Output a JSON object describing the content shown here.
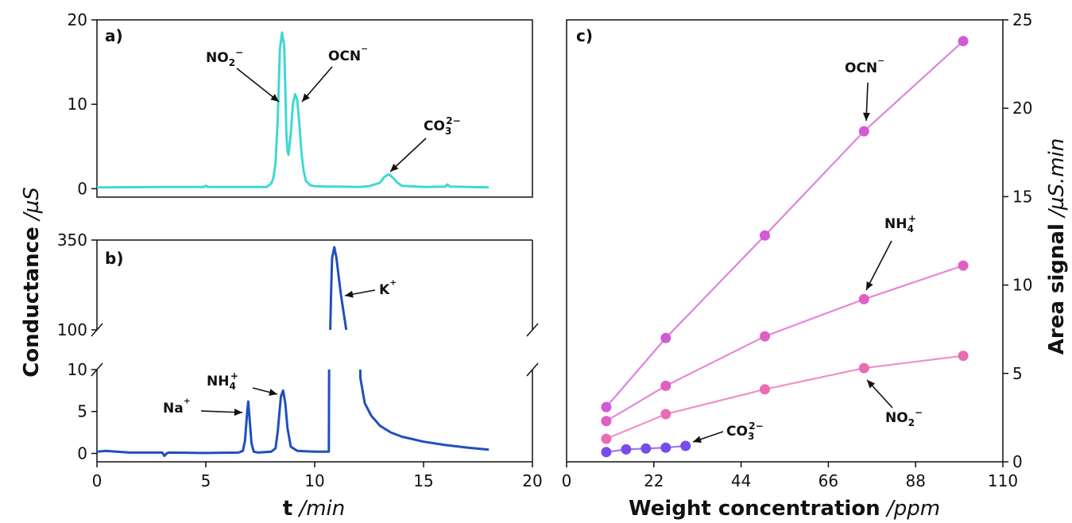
{
  "figure": {
    "left_ylabel": {
      "main": "Conductance",
      "unit": "/µS"
    },
    "bottom_xlabel": {
      "main": "t",
      "unit": "/min"
    },
    "right_xlabel": {
      "main": "Weight concentration",
      "unit": "/ppm"
    },
    "right_ylabel": {
      "main": "Area signal",
      "unit": "/µS.min"
    }
  },
  "colors": {
    "anion": "#3fd9d3",
    "cation": "#1f4fbf",
    "ocn": "#d25ad4",
    "nh4": "#e05fc5",
    "no2": "#ea6cb3",
    "co3": "#7a4be8"
  },
  "chart_data": [
    {
      "panel": "a)",
      "type": "line",
      "xlim": [
        0,
        20
      ],
      "ylim": [
        -1,
        20
      ],
      "yticks": [
        "0",
        "10",
        "20"
      ],
      "series": [
        {
          "x": [
            0,
            3,
            4.9,
            5.0,
            5.1,
            7.8,
            7.9,
            8.0,
            8.1,
            8.2,
            8.3,
            8.4,
            8.5,
            8.6,
            8.65,
            8.7,
            8.75,
            8.8,
            8.9,
            9.0,
            9.1,
            9.2,
            9.3,
            9.4,
            9.5,
            9.6,
            9.8,
            10.0,
            10.5,
            11,
            12,
            12.5,
            13.0,
            13.2,
            13.4,
            13.6,
            13.8,
            14.0,
            15,
            16,
            16.1,
            16.2,
            18
          ],
          "y": [
            0.15,
            0.2,
            0.2,
            0.35,
            0.2,
            0.2,
            0.4,
            0.6,
            1.2,
            3.0,
            8.0,
            16.5,
            18.5,
            17.0,
            12.0,
            6.5,
            4.5,
            4.0,
            6.5,
            10.0,
            11.2,
            10.5,
            7.5,
            4.0,
            2.0,
            0.9,
            0.4,
            0.3,
            0.25,
            0.25,
            0.2,
            0.3,
            0.7,
            1.4,
            1.7,
            1.3,
            0.7,
            0.35,
            0.2,
            0.25,
            0.5,
            0.25,
            0.15
          ]
        }
      ],
      "annotations": [
        {
          "label": "NO₂⁻",
          "x": 8.55,
          "y": 10.0
        },
        {
          "label": "OCN⁻",
          "x": 9.1,
          "y": 10.5
        },
        {
          "label": "CO₃²⁻",
          "x": 13.4,
          "y": 1.7
        }
      ]
    },
    {
      "panel": "b)",
      "type": "line",
      "xlim": [
        0,
        20
      ],
      "broken_y": {
        "lower_range": [
          -1,
          10
        ],
        "upper_range": [
          100,
          350
        ]
      },
      "yticks": [
        "0",
        "5",
        "10",
        "100",
        "350"
      ],
      "xticks": [
        "0",
        "5",
        "10",
        "15",
        "20"
      ],
      "series": [
        {
          "x": [
            0,
            0.4,
            0.9,
            1.5,
            3.0,
            3.1,
            3.2,
            3.3,
            5.0,
            6.5,
            6.7,
            6.8,
            6.9,
            6.95,
            7.0,
            7.1,
            7.2,
            7.4,
            8.0,
            8.2,
            8.3,
            8.45,
            8.55,
            8.65,
            8.75,
            8.9,
            9.2,
            10.0,
            10.65,
            10.7,
            10.75,
            10.8,
            10.9,
            11.0,
            11.1,
            11.2,
            11.3,
            11.5,
            12.0,
            12.1,
            12.3,
            12.6,
            13.0,
            13.5,
            14.0,
            15.0,
            16.0,
            17.0,
            18.0
          ],
          "y": [
            0.2,
            0.3,
            0.2,
            0.1,
            0.1,
            -0.3,
            0.0,
            0.1,
            0.05,
            0.1,
            0.3,
            1.5,
            5.0,
            6.2,
            4.5,
            1.2,
            0.2,
            0.1,
            0.2,
            0.6,
            2.5,
            6.8,
            7.5,
            6.0,
            3.0,
            0.8,
            0.3,
            0.2,
            0.2,
            60.0,
            200.0,
            300.0,
            330.0,
            300.0,
            250.0,
            200.0,
            160.0,
            80.0,
            30.0,
            9.0,
            6.0,
            4.5,
            3.3,
            2.5,
            2.0,
            1.4,
            1.0,
            0.7,
            0.45
          ]
        }
      ],
      "annotations": [
        {
          "label": "Na⁺",
          "x": 6.9,
          "y": 5.0
        },
        {
          "label": "NH₄⁺",
          "x": 8.5,
          "y": 7.3
        },
        {
          "label": "K⁺",
          "x": 11.2,
          "y": 245
        }
      ]
    },
    {
      "panel": "c)",
      "type": "line",
      "xlim": [
        0,
        110
      ],
      "ylim": [
        0,
        25
      ],
      "xticks": [
        "0",
        "22",
        "44",
        "66",
        "88",
        "110"
      ],
      "yticks": [
        "0",
        "5",
        "10",
        "15",
        "20",
        "25"
      ],
      "series": [
        {
          "name": "OCN⁻",
          "color": "#d25ad4",
          "x": [
            10,
            25,
            50,
            75,
            100
          ],
          "y": [
            3.1,
            7.0,
            12.8,
            18.7,
            23.8
          ]
        },
        {
          "name": "NH₄⁺",
          "color": "#e05fc5",
          "x": [
            10,
            25,
            50,
            75,
            100
          ],
          "y": [
            2.3,
            4.3,
            7.1,
            9.2,
            11.1
          ]
        },
        {
          "name": "NO₂⁻",
          "color": "#ea6cb3",
          "x": [
            10,
            25,
            50,
            75,
            100
          ],
          "y": [
            1.3,
            2.7,
            4.1,
            5.3,
            6.0
          ]
        },
        {
          "name": "CO₃²⁻",
          "color": "#7a4be8",
          "x": [
            10,
            15,
            20,
            25,
            30
          ],
          "y": [
            0.55,
            0.7,
            0.75,
            0.8,
            0.9
          ]
        }
      ]
    }
  ]
}
